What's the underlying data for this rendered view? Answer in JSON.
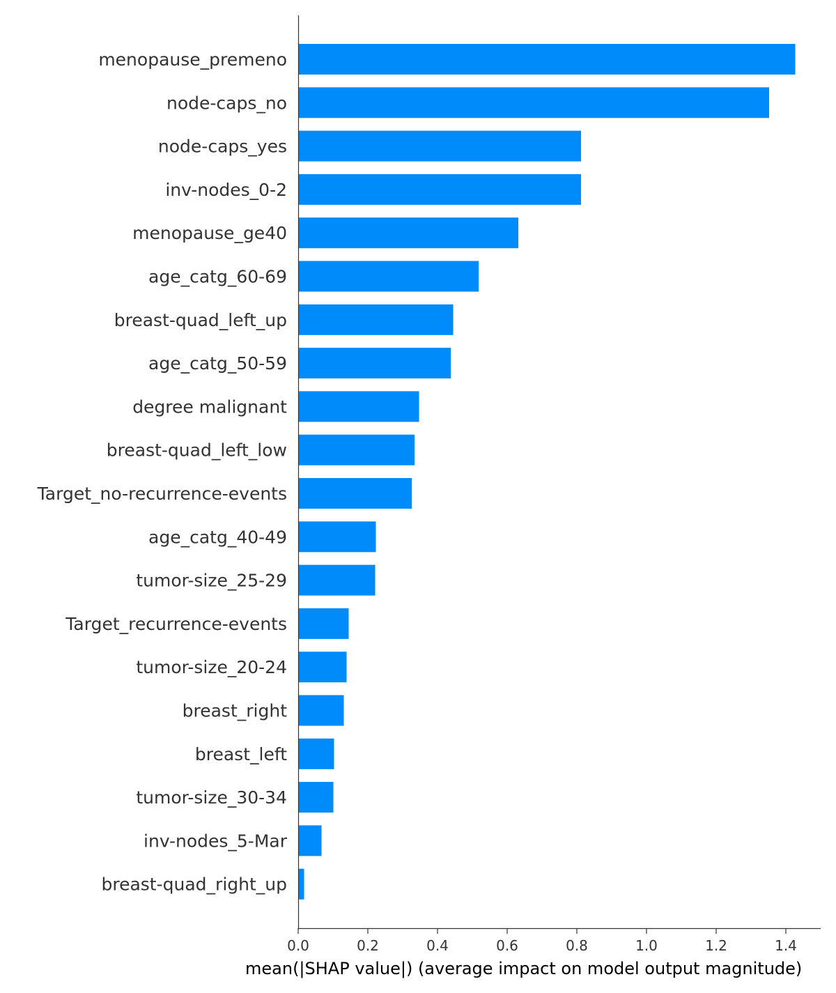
{
  "chart_data": {
    "type": "bar",
    "orientation": "horizontal",
    "title": "",
    "xlabel": "mean(|SHAP value|) (average impact on model output magnitude)",
    "ylabel": "",
    "xlim": [
      0,
      1.5
    ],
    "xticks": [
      "0.0",
      "0.2",
      "0.4",
      "0.6",
      "0.8",
      "1.0",
      "1.2",
      "1.4"
    ],
    "grid": false,
    "bar_color": "#008bfb",
    "axis_color": "#333333",
    "categories": [
      "menopause_premeno",
      "node-caps_no",
      "node-caps_yes",
      "inv-nodes_0-2",
      "menopause_ge40",
      "age_catg_60-69",
      "breast-quad_left_up",
      "age_catg_50-59",
      "degree malignant",
      "breast-quad_left_low",
      "Target_no-recurrence-events",
      "age_catg_40-49",
      "tumor-size_25-29",
      "Target_recurrence-events",
      "tumor-size_20-24",
      "breast_right",
      "breast_left",
      "tumor-size_30-34",
      "inv-nodes_5-Mar",
      "breast-quad_right_up"
    ],
    "values": [
      1.427,
      1.352,
      0.812,
      0.812,
      0.632,
      0.518,
      0.445,
      0.438,
      0.347,
      0.334,
      0.326,
      0.223,
      0.221,
      0.145,
      0.139,
      0.131,
      0.103,
      0.101,
      0.067,
      0.017
    ]
  }
}
